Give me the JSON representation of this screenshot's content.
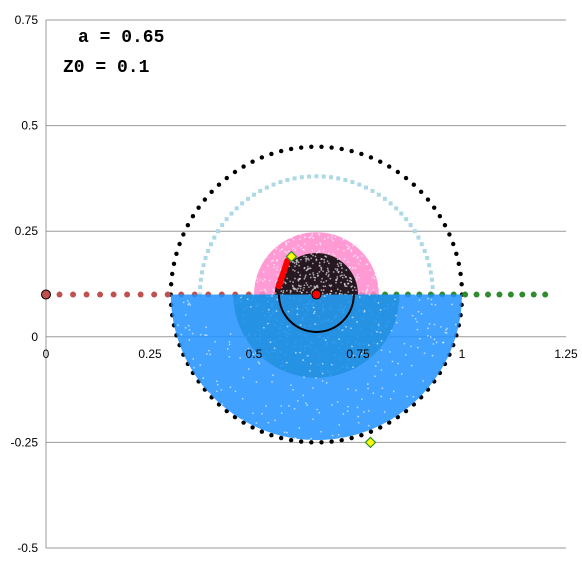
{
  "chart_data": {
    "type": "scatter",
    "title": "",
    "xlabel": "",
    "ylabel": "",
    "xlim": [
      0,
      1.25
    ],
    "ylim": [
      -0.5,
      0.75
    ],
    "x_ticks": [
      0,
      0.25,
      0.5,
      0.75,
      1,
      1.25
    ],
    "y_ticks": [
      -0.5,
      -0.25,
      0,
      0.25,
      0.5,
      0.75
    ],
    "x_tick_labels": [
      "0",
      "0.25",
      "0.5",
      "0.75",
      "1",
      "1.25"
    ],
    "y_tick_labels": [
      "-0.5",
      "-0.25",
      "0",
      "0.25",
      "0.5",
      "0.75"
    ],
    "grid": "horizontal",
    "legend": "none",
    "annotations": [
      {
        "text": "a = 0.65"
      },
      {
        "text": "Z0 = 0.1"
      }
    ],
    "series": [
      {
        "color": "#000000",
        "kind": "dotted-circle",
        "center": [
          0.65,
          0.1
        ],
        "radius": 0.35
      },
      {
        "color": "#add8e6",
        "kind": "dotted-arc",
        "center": [
          0.65,
          0.1
        ],
        "radius": 0.28,
        "from_deg": 0,
        "to_deg": 180
      },
      {
        "color": "#c0504d",
        "kind": "line-dots",
        "y": 0.1,
        "x_from": 0.0,
        "x_to": 0.65
      },
      {
        "color": "#2e8b2e",
        "kind": "line-dots",
        "y": 0.1,
        "x_from": 0.65,
        "x_to": 1.2
      },
      {
        "color": "#ff88cc",
        "kind": "filled-half-disk",
        "center": [
          0.65,
          0.1
        ],
        "radius": 0.15,
        "side": "upper"
      },
      {
        "color": "#000000",
        "kind": "filled-disk",
        "center": [
          0.65,
          0.1
        ],
        "radius": 0.1,
        "side": "upper"
      },
      {
        "color": "#ff8c1a",
        "kind": "filled-half-disk",
        "center": [
          0.65,
          0.1
        ],
        "radius": 0.1,
        "side": "lower"
      },
      {
        "color": "#2e8b2e",
        "kind": "filled-half-disk",
        "center": [
          0.65,
          0.1
        ],
        "radius": 0.2,
        "side": "lower"
      },
      {
        "color": "#1e90ff",
        "kind": "filled-half-disk",
        "center": [
          0.65,
          0.1
        ],
        "radius": 0.35,
        "side": "lower"
      },
      {
        "color": "#ff0000",
        "kind": "arc-segment",
        "x": [
          0.56,
          0.58
        ],
        "y": [
          0.12,
          0.18
        ]
      }
    ],
    "markers": [
      {
        "name": "z0-origin",
        "x": 0.0,
        "y": 0.1,
        "color": "#c0504d"
      },
      {
        "name": "center",
        "x": 0.65,
        "y": 0.1,
        "color": "#ff0000"
      },
      {
        "name": "diamond-top",
        "x": 0.59,
        "y": 0.19,
        "color": "#ffff00"
      },
      {
        "name": "diamond-bottom",
        "x": 0.78,
        "y": -0.25,
        "color": "#ffff00"
      }
    ]
  }
}
